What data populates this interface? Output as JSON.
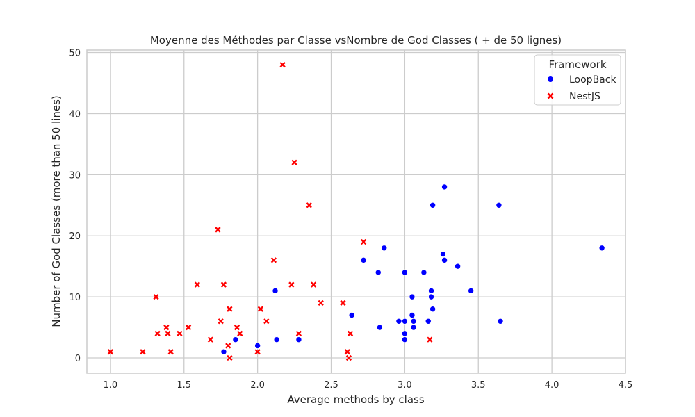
{
  "chart_data": {
    "type": "scatter",
    "title": "Moyenne des Méthodes par Classe vsNombre de God Classes ( + de 50 lignes)",
    "xlabel": "Average methods by class",
    "ylabel": "Number of God Classes (more than 50 lines)",
    "xlim": [
      0.84,
      4.5
    ],
    "ylim": [
      -2.5,
      50.4
    ],
    "xticks": [
      1.0,
      1.5,
      2.0,
      2.5,
      3.0,
      3.5,
      4.0,
      4.5
    ],
    "xtick_labels": [
      "1.0",
      "1.5",
      "2.0",
      "2.5",
      "3.0",
      "3.5",
      "4.0",
      "4.5"
    ],
    "yticks": [
      0,
      10,
      20,
      30,
      40,
      50
    ],
    "ytick_labels": [
      "0",
      "10",
      "20",
      "30",
      "40",
      "50"
    ],
    "grid": true,
    "legend": {
      "title": "Framework",
      "placement": "top-right"
    },
    "series": [
      {
        "name": "LoopBack",
        "marker": "circle",
        "color": "#0000ff",
        "points": [
          [
            1.77,
            1
          ],
          [
            1.85,
            3
          ],
          [
            2.0,
            2
          ],
          [
            2.12,
            11
          ],
          [
            2.13,
            3
          ],
          [
            2.28,
            3
          ],
          [
            2.64,
            7
          ],
          [
            2.72,
            16
          ],
          [
            2.82,
            14
          ],
          [
            2.83,
            5
          ],
          [
            2.86,
            18
          ],
          [
            2.96,
            6
          ],
          [
            3.0,
            14
          ],
          [
            3.0,
            6
          ],
          [
            3.0,
            4
          ],
          [
            3.0,
            3
          ],
          [
            3.05,
            10
          ],
          [
            3.05,
            7
          ],
          [
            3.06,
            6
          ],
          [
            3.06,
            5
          ],
          [
            3.13,
            14
          ],
          [
            3.16,
            6
          ],
          [
            3.18,
            11
          ],
          [
            3.18,
            10
          ],
          [
            3.19,
            25
          ],
          [
            3.19,
            8
          ],
          [
            3.26,
            17
          ],
          [
            3.27,
            28
          ],
          [
            3.27,
            16
          ],
          [
            3.36,
            15
          ],
          [
            3.45,
            11
          ],
          [
            3.64,
            25
          ],
          [
            3.65,
            6
          ],
          [
            4.34,
            18
          ]
        ]
      },
      {
        "name": "NestJS",
        "marker": "x",
        "color": "#ff0000",
        "points": [
          [
            1.0,
            1
          ],
          [
            1.22,
            1
          ],
          [
            1.31,
            10
          ],
          [
            1.32,
            4
          ],
          [
            1.38,
            5
          ],
          [
            1.39,
            4
          ],
          [
            1.41,
            1
          ],
          [
            1.47,
            4
          ],
          [
            1.53,
            5
          ],
          [
            1.59,
            12
          ],
          [
            1.68,
            3
          ],
          [
            1.73,
            21
          ],
          [
            1.75,
            6
          ],
          [
            1.77,
            12
          ],
          [
            1.8,
            2
          ],
          [
            1.81,
            8
          ],
          [
            1.81,
            0
          ],
          [
            1.86,
            5
          ],
          [
            1.88,
            4
          ],
          [
            2.0,
            1
          ],
          [
            2.02,
            8
          ],
          [
            2.06,
            6
          ],
          [
            2.11,
            16
          ],
          [
            2.17,
            48
          ],
          [
            2.23,
            12
          ],
          [
            2.25,
            32
          ],
          [
            2.28,
            4
          ],
          [
            2.35,
            25
          ],
          [
            2.38,
            12
          ],
          [
            2.43,
            9
          ],
          [
            2.58,
            9
          ],
          [
            2.61,
            1
          ],
          [
            2.62,
            0
          ],
          [
            2.63,
            4
          ],
          [
            2.72,
            19
          ],
          [
            3.17,
            3
          ]
        ]
      }
    ]
  }
}
